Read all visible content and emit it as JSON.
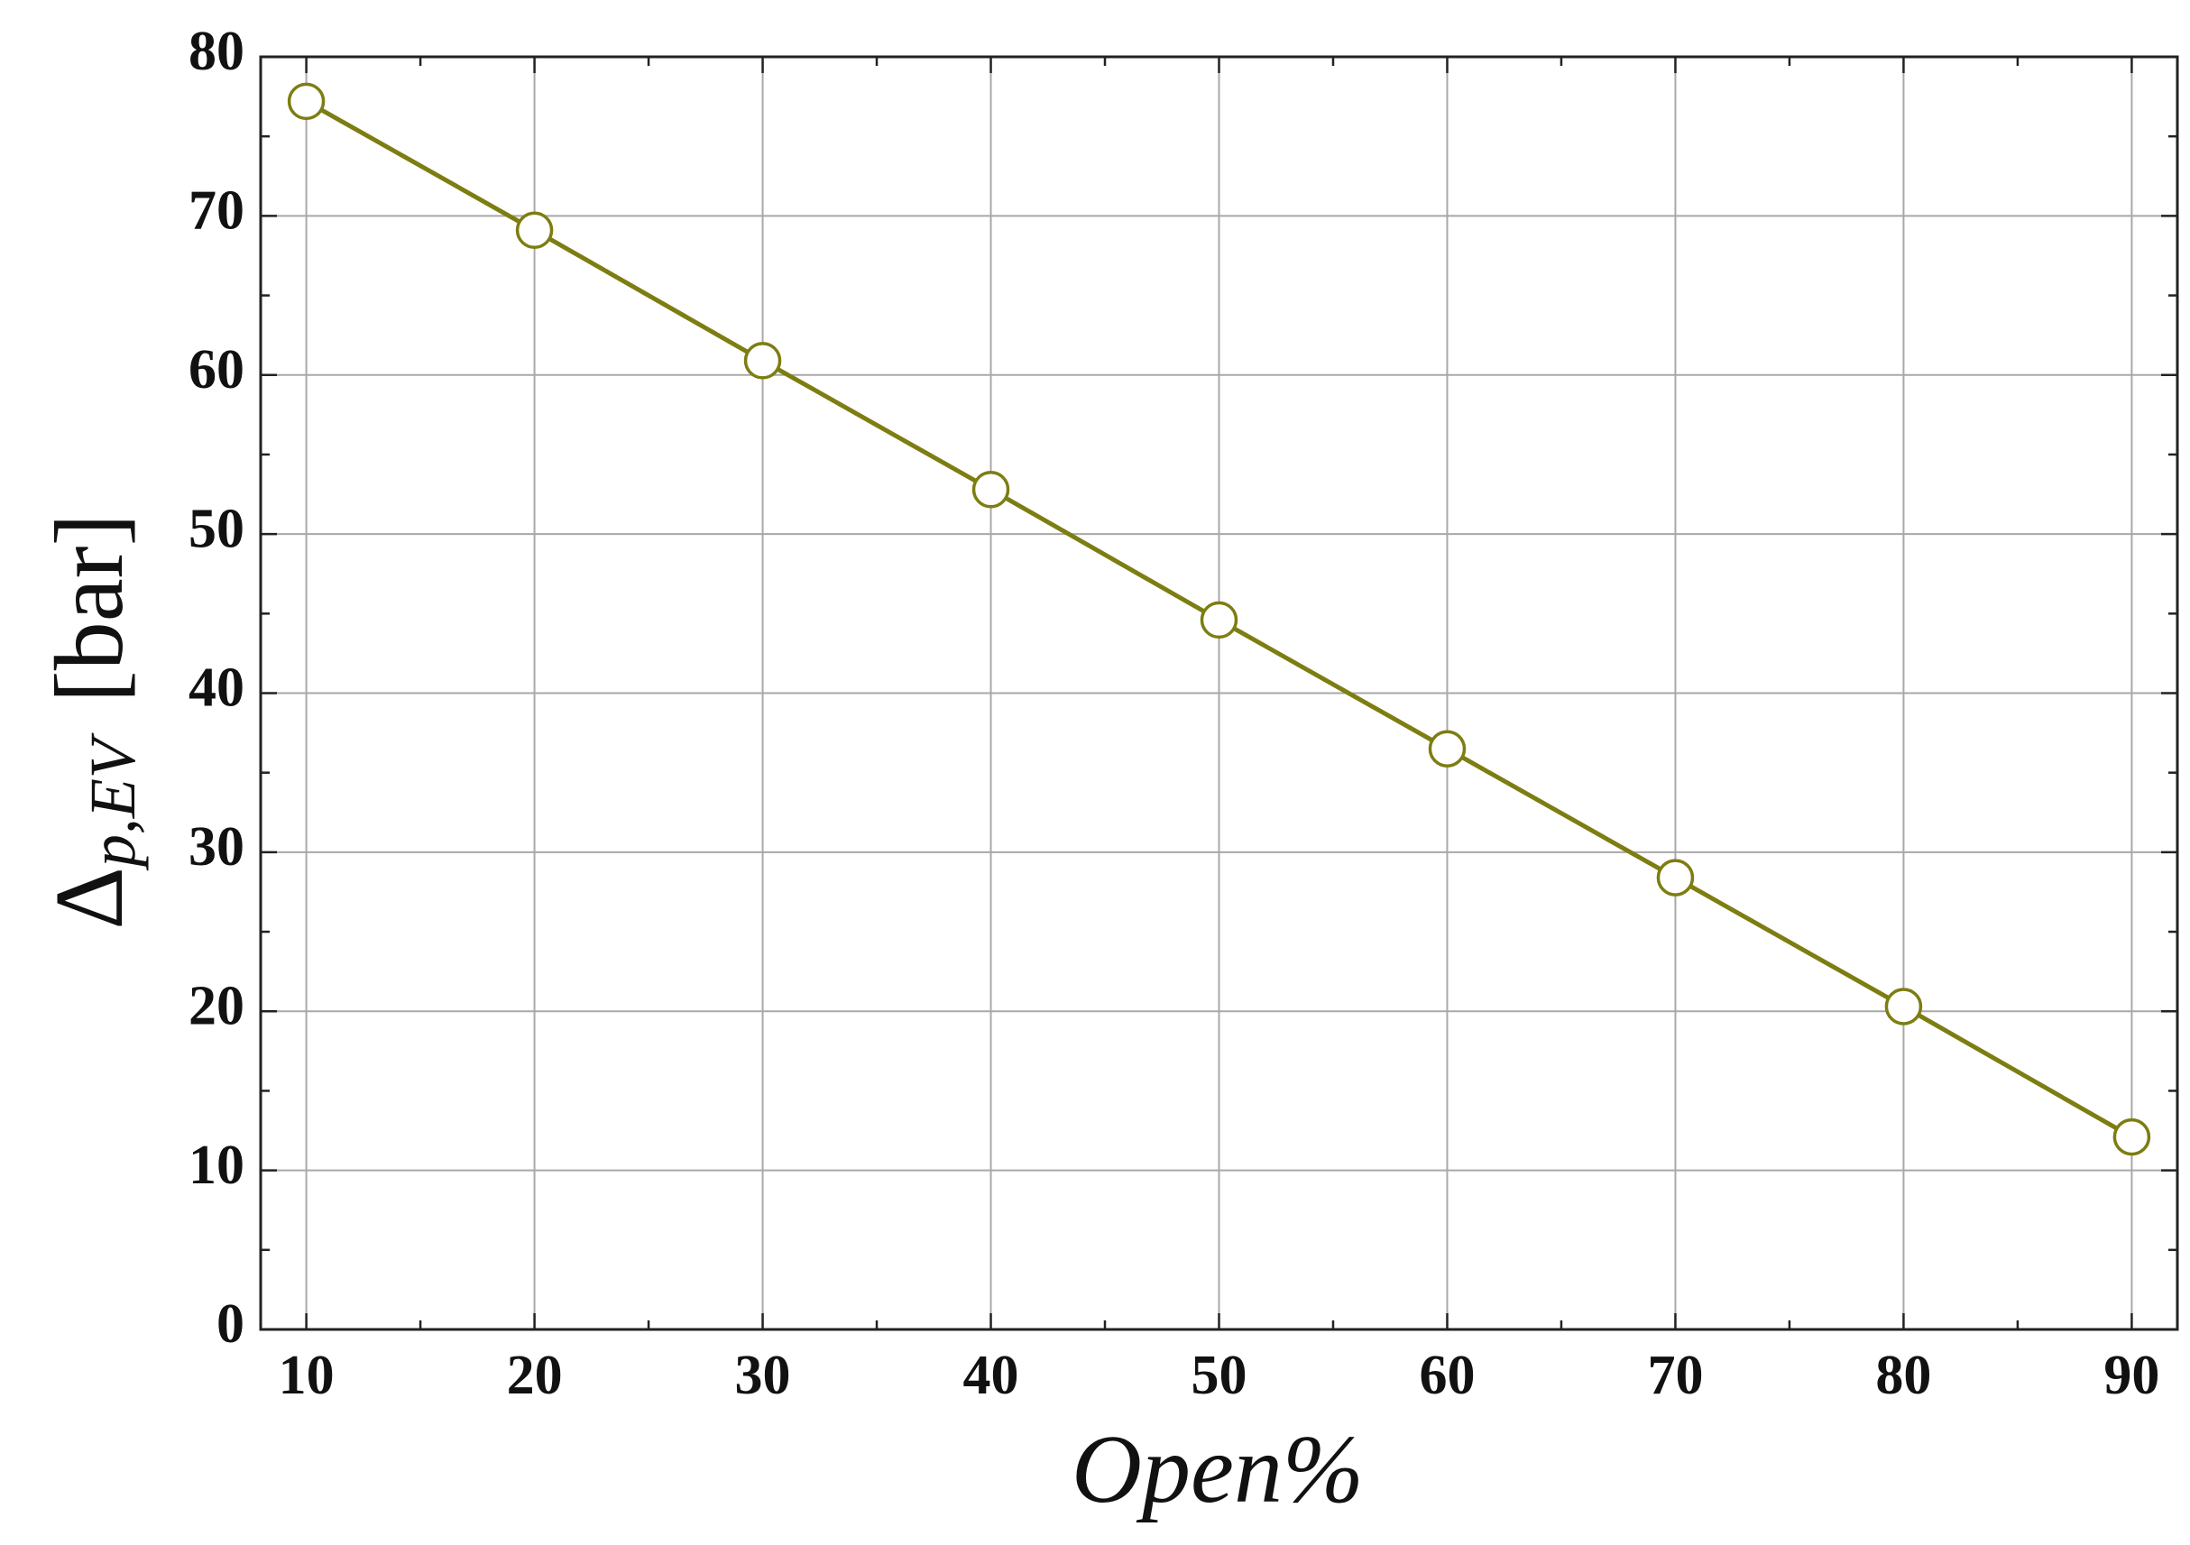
{
  "chart_data": {
    "type": "line",
    "xlabel": "Open%",
    "ylabel": {
      "symbol": "Δ",
      "subscript": "p,EV",
      "unit": "[bar]"
    },
    "x": [
      10,
      20,
      30,
      40,
      50,
      60,
      70,
      80,
      90
    ],
    "series": [
      {
        "color": "#7d7d12",
        "values": [
          77.2,
          69.1,
          60.9,
          52.8,
          44.6,
          36.5,
          28.4,
          20.3,
          12.1
        ]
      }
    ],
    "xlim": [
      8,
      92
    ],
    "ylim": [
      0,
      80
    ],
    "xticks": [
      10,
      20,
      30,
      40,
      50,
      60,
      70,
      80,
      90
    ],
    "yticks": [
      0,
      10,
      20,
      30,
      40,
      50,
      60,
      70,
      80
    ],
    "x_minor_ticks": [
      15,
      25,
      35,
      45,
      55,
      65,
      75,
      85
    ],
    "y_minor_ticks": [
      5,
      15,
      25,
      35,
      45,
      55,
      65,
      75
    ],
    "grid": true
  }
}
